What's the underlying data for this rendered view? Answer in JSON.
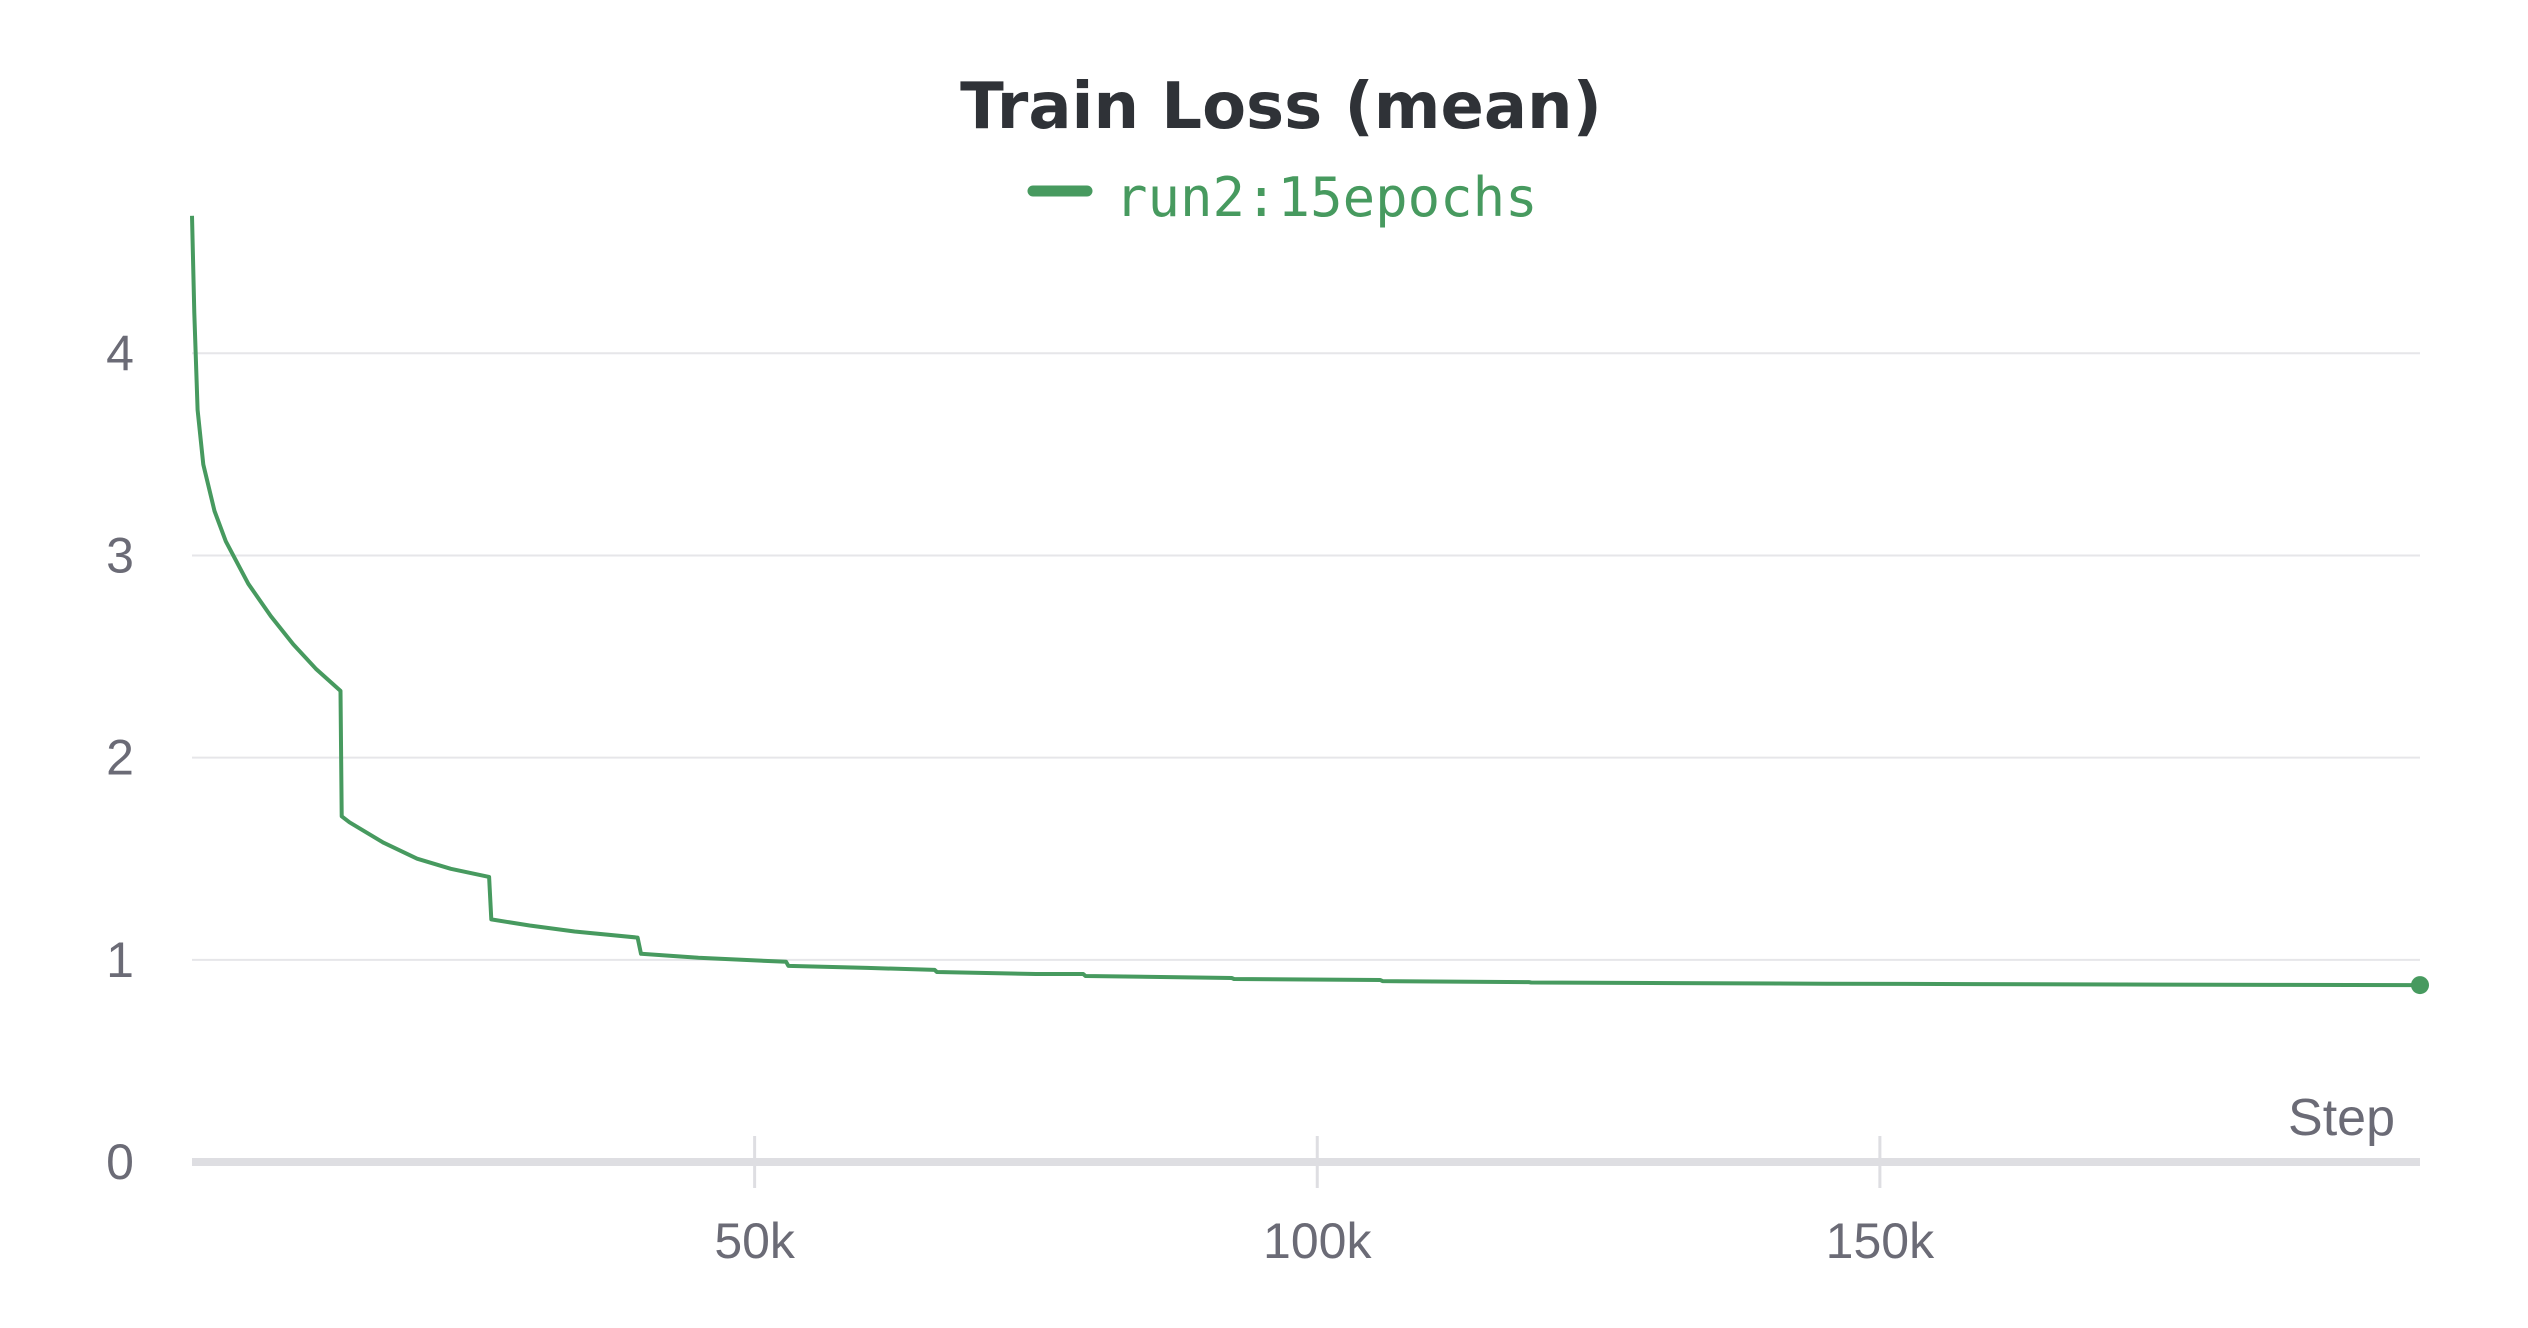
{
  "chart_data": {
    "type": "line",
    "title": "Train Loss (mean)",
    "xlabel": "Step",
    "ylabel": "",
    "xlim": [
      0,
      198000
    ],
    "ylim": [
      0,
      4.6
    ],
    "x_ticks": [
      50000,
      100000,
      150000
    ],
    "x_tick_labels": [
      "50k",
      "100k",
      "150k"
    ],
    "y_ticks": [
      0,
      1,
      2,
      3,
      4
    ],
    "y_tick_labels": [
      "0",
      "1",
      "2",
      "3",
      "4"
    ],
    "grid": true,
    "legend_position": "top-center",
    "series": [
      {
        "name": "run2:15epochs",
        "color": "#479a5f",
        "x": [
          0,
          200,
          500,
          1000,
          2000,
          3000,
          5000,
          7000,
          9000,
          11000,
          13200,
          13300,
          14000,
          17000,
          20000,
          23000,
          26400,
          26600,
          30000,
          34000,
          39600,
          39900,
          45000,
          52800,
          53000,
          60000,
          66000,
          66200,
          75000,
          79200,
          79400,
          92400,
          92600,
          105600,
          105800,
          118800,
          119000,
          132000,
          145200,
          158400,
          171600,
          184800,
          198000
        ],
        "values": [
          4.68,
          4.2,
          3.72,
          3.45,
          3.22,
          3.07,
          2.86,
          2.7,
          2.56,
          2.44,
          2.33,
          1.71,
          1.68,
          1.58,
          1.5,
          1.45,
          1.41,
          1.2,
          1.17,
          1.14,
          1.11,
          1.03,
          1.01,
          0.99,
          0.97,
          0.96,
          0.95,
          0.94,
          0.93,
          0.93,
          0.92,
          0.91,
          0.905,
          0.9,
          0.895,
          0.89,
          0.888,
          0.885,
          0.882,
          0.88,
          0.878,
          0.876,
          0.875
        ]
      }
    ]
  }
}
